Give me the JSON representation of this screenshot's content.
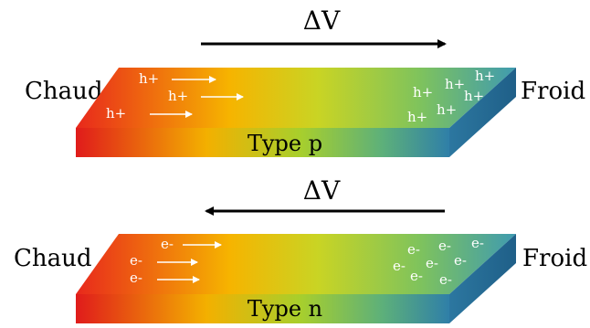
{
  "top_panel": {
    "delta_label": "ΔV",
    "arrow_direction": "right",
    "left_label": "Chaud",
    "right_label": "Froid",
    "type_label": "Type p",
    "carriers_left": [
      "h+",
      "h+",
      "h+"
    ],
    "carriers_right": [
      "h+",
      "h+",
      "h+",
      "h+",
      "h+",
      "h+"
    ]
  },
  "bottom_panel": {
    "delta_label": "ΔV",
    "arrow_direction": "left",
    "left_label": "Chaud",
    "right_label": "Froid",
    "type_label": "Type n",
    "carriers_left": [
      "e-",
      "e-",
      "e-"
    ],
    "carriers_right": [
      "e-",
      "e-",
      "e-",
      "e-",
      "e-",
      "e-",
      "e-",
      "e-"
    ]
  },
  "colors": {
    "hot": "#e8281c",
    "warm": "#f6b400",
    "mid": "#c9d424",
    "cool": "#7fc35c",
    "cold": "#3f9bb0",
    "side_dark": "#1f5f88"
  }
}
